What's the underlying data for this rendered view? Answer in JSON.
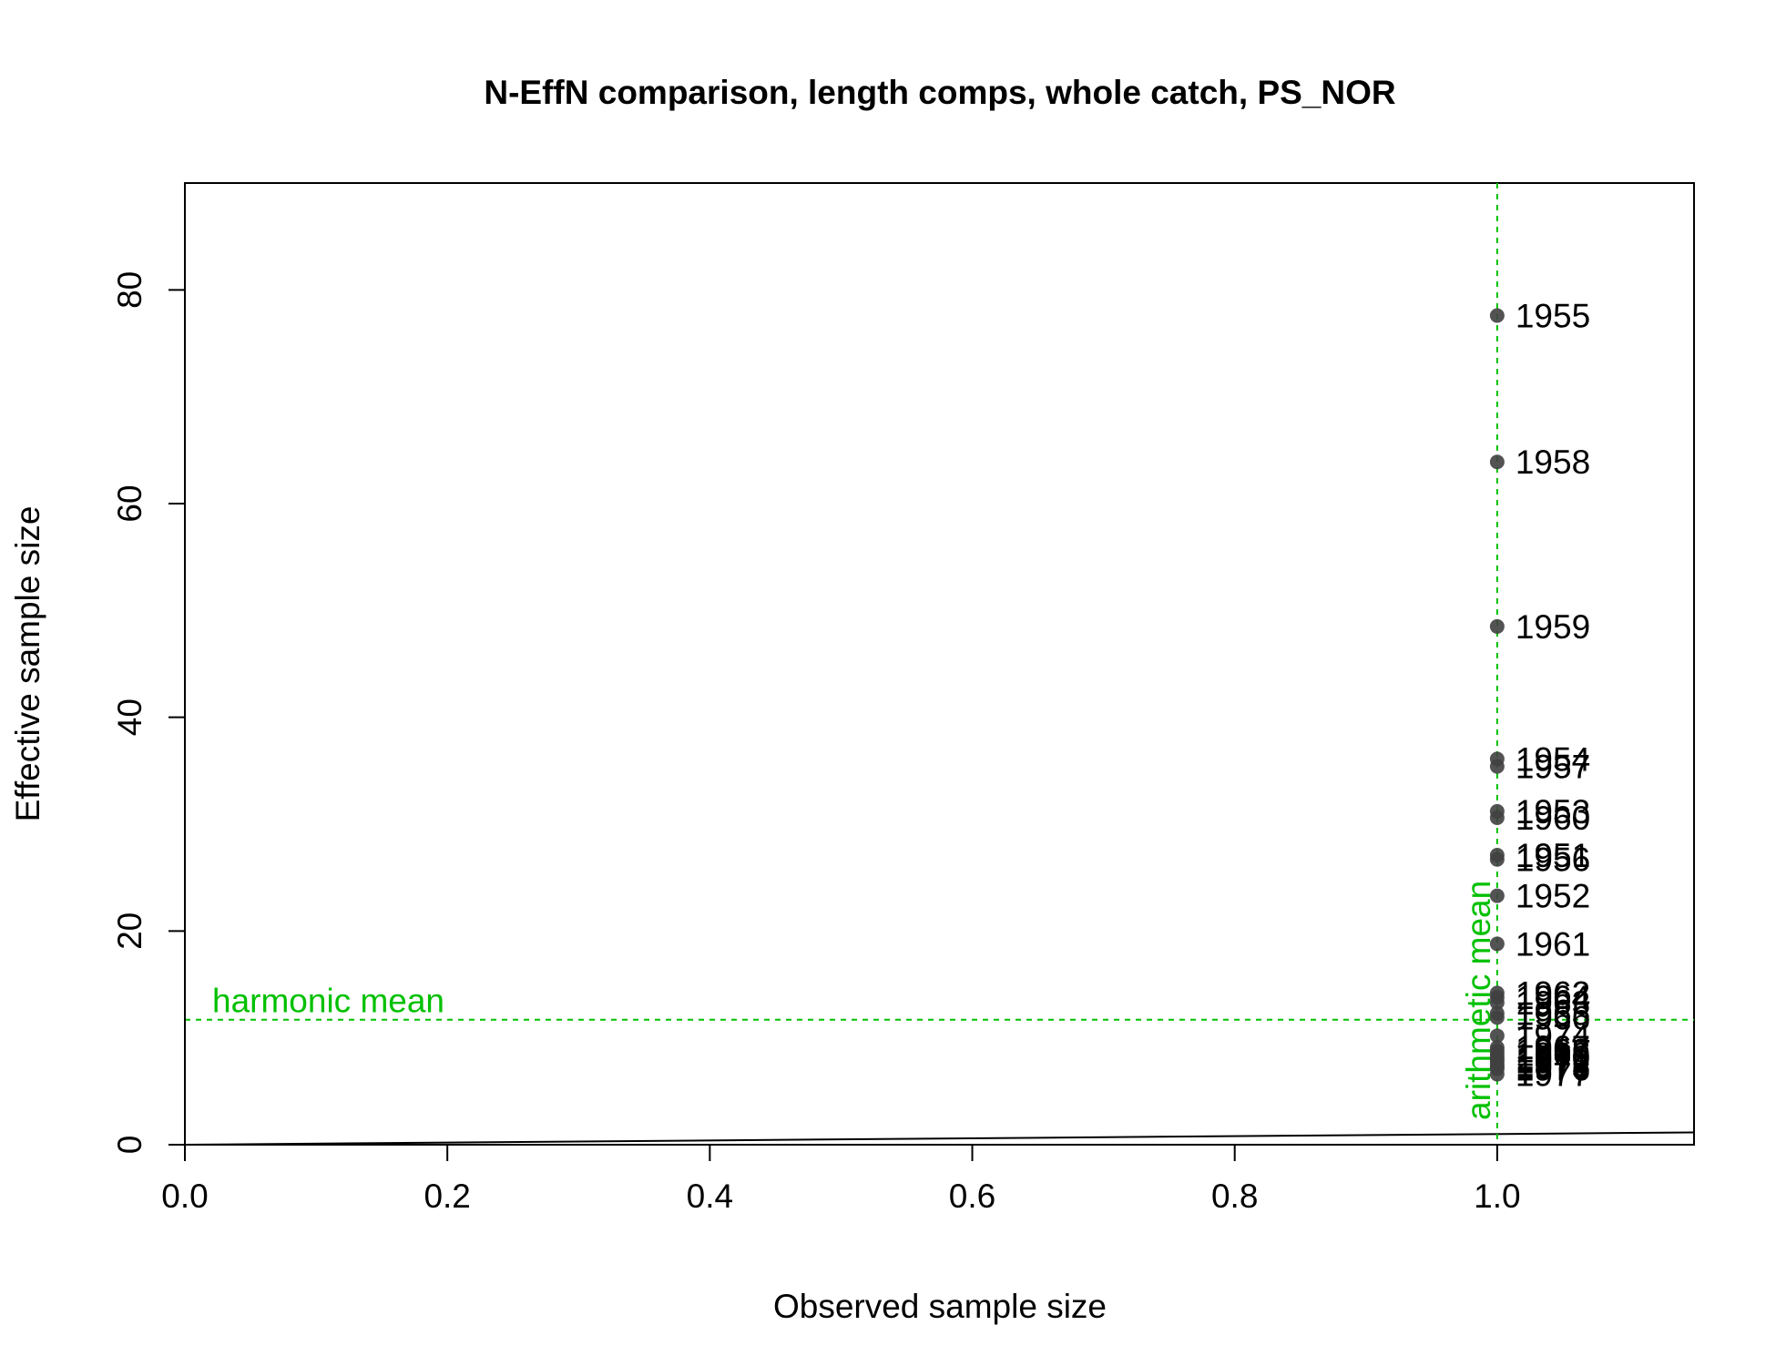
{
  "chart_data": {
    "type": "scatter",
    "title": "N-EffN comparison, length comps, whole catch, PS_NOR",
    "xlabel": "Observed sample size",
    "ylabel": "Effective sample size",
    "xlim": [
      0,
      1.15
    ],
    "ylim": [
      0,
      90
    ],
    "xticks": [
      0.0,
      0.2,
      0.4,
      0.6,
      0.8,
      1.0
    ],
    "xtick_labels": [
      "0.0",
      "0.2",
      "0.4",
      "0.6",
      "0.8",
      "1.0"
    ],
    "yticks": [
      0,
      20,
      40,
      60,
      80
    ],
    "ytick_labels": [
      "0",
      "20",
      "40",
      "60",
      "80"
    ],
    "grid": false,
    "point_color": "#404040",
    "reference_color": "#00c000",
    "points": [
      {
        "x": 1,
        "y": 77.6,
        "label": "1955"
      },
      {
        "x": 1,
        "y": 63.9,
        "label": "1958"
      },
      {
        "x": 1,
        "y": 48.5,
        "label": "1959"
      },
      {
        "x": 1,
        "y": 36.1,
        "label": "1954"
      },
      {
        "x": 1,
        "y": 35.4,
        "label": "1957"
      },
      {
        "x": 1,
        "y": 31.2,
        "label": "1953"
      },
      {
        "x": 1,
        "y": 30.6,
        "label": "1960"
      },
      {
        "x": 1,
        "y": 27.1,
        "label": "1951"
      },
      {
        "x": 1,
        "y": 26.7,
        "label": "1956"
      },
      {
        "x": 1,
        "y": 23.3,
        "label": "1952"
      },
      {
        "x": 1,
        "y": 18.8,
        "label": "1961"
      },
      {
        "x": 1,
        "y": 14.2,
        "label": "1962"
      },
      {
        "x": 1,
        "y": 13.8,
        "label": "1964"
      },
      {
        "x": 1,
        "y": 13.3,
        "label": "1963"
      },
      {
        "x": 1,
        "y": 12.3,
        "label": "1965"
      },
      {
        "x": 1,
        "y": 11.9,
        "label": "1966"
      },
      {
        "x": 1,
        "y": 10.2,
        "label": "1974"
      },
      {
        "x": 1,
        "y": 9.1,
        "label": "1967"
      },
      {
        "x": 1,
        "y": 8.8,
        "label": "1968"
      },
      {
        "x": 1,
        "y": 8.5,
        "label": "1969"
      },
      {
        "x": 1,
        "y": 8.2,
        "label": "1970"
      },
      {
        "x": 1,
        "y": 8.0,
        "label": "1971"
      },
      {
        "x": 1,
        "y": 7.8,
        "label": "1972"
      },
      {
        "x": 1,
        "y": 7.5,
        "label": "1973"
      },
      {
        "x": 1,
        "y": 7.3,
        "label": "1975"
      },
      {
        "x": 1,
        "y": 7.1,
        "label": "1976"
      },
      {
        "x": 1,
        "y": 6.6,
        "label": "1977"
      }
    ],
    "reference_lines": {
      "harmonic_mean": {
        "y": 11.7,
        "label": "harmonic mean"
      },
      "arithmetic_mean": {
        "x": 1.0,
        "label": "arithmetic mean"
      },
      "one_to_one": {
        "slope": 1,
        "intercept": 0
      }
    }
  }
}
